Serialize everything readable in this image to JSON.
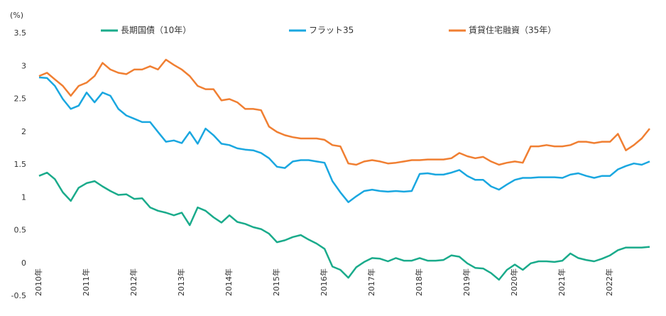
{
  "chart_data": {
    "type": "line",
    "y_label": "(%)",
    "categories": [
      "2010年",
      null,
      null,
      null,
      null,
      null,
      "2011年",
      null,
      null,
      null,
      null,
      null,
      "2012年",
      null,
      null,
      null,
      null,
      null,
      "2013年",
      null,
      null,
      null,
      null,
      null,
      "2014年",
      null,
      null,
      null,
      null,
      null,
      "2015年",
      null,
      null,
      null,
      null,
      null,
      "2016年",
      null,
      null,
      null,
      null,
      null,
      "2017年",
      null,
      null,
      null,
      null,
      null,
      "2018年",
      null,
      null,
      null,
      null,
      null,
      "2019年",
      null,
      null,
      null,
      null,
      null,
      "2020年",
      null,
      null,
      null,
      null,
      null,
      "2021年",
      null,
      null,
      null,
      null,
      null,
      "2022年",
      null,
      null,
      null,
      null,
      null
    ],
    "series": [
      {
        "name": "長期国債（10年）",
        "color": "#1aab8b",
        "values": [
          1.33,
          1.38,
          1.28,
          1.08,
          0.95,
          1.15,
          1.22,
          1.25,
          1.17,
          1.1,
          1.04,
          1.05,
          0.98,
          0.99,
          0.85,
          0.8,
          0.77,
          0.73,
          0.77,
          0.58,
          0.85,
          0.8,
          0.7,
          0.62,
          0.73,
          0.63,
          0.6,
          0.55,
          0.52,
          0.45,
          0.32,
          0.35,
          0.4,
          0.43,
          0.36,
          0.3,
          0.22,
          -0.05,
          -0.1,
          -0.22,
          -0.06,
          0.02,
          0.08,
          0.07,
          0.03,
          0.08,
          0.04,
          0.04,
          0.08,
          0.04,
          0.04,
          0.05,
          0.12,
          0.1,
          0.0,
          -0.07,
          -0.08,
          -0.15,
          -0.25,
          -0.1,
          -0.02,
          -0.1,
          0.0,
          0.03,
          0.03,
          0.02,
          0.04,
          0.15,
          0.08,
          0.05,
          0.03,
          0.07,
          0.12,
          0.2,
          0.24,
          0.24,
          0.24,
          0.25
        ]
      },
      {
        "name": "フラット35",
        "color": "#1aa7e0",
        "values": [
          2.83,
          2.82,
          2.7,
          2.5,
          2.35,
          2.4,
          2.6,
          2.45,
          2.6,
          2.55,
          2.35,
          2.25,
          2.2,
          2.15,
          2.15,
          2.0,
          1.85,
          1.87,
          1.83,
          2.0,
          1.82,
          2.05,
          1.95,
          1.82,
          1.8,
          1.75,
          1.73,
          1.72,
          1.68,
          1.6,
          1.47,
          1.45,
          1.55,
          1.57,
          1.57,
          1.55,
          1.53,
          1.25,
          1.08,
          0.93,
          1.02,
          1.1,
          1.12,
          1.1,
          1.09,
          1.1,
          1.09,
          1.1,
          1.36,
          1.37,
          1.35,
          1.35,
          1.38,
          1.42,
          1.33,
          1.27,
          1.27,
          1.17,
          1.12,
          1.2,
          1.27,
          1.3,
          1.3,
          1.31,
          1.31,
          1.31,
          1.3,
          1.35,
          1.37,
          1.33,
          1.3,
          1.33,
          1.33,
          1.43,
          1.48,
          1.52,
          1.5,
          1.55
        ]
      },
      {
        "name": "賃貸住宅融資（35年）",
        "color": "#f07f32",
        "values": [
          2.85,
          2.9,
          2.8,
          2.7,
          2.55,
          2.7,
          2.75,
          2.85,
          3.05,
          2.95,
          2.9,
          2.88,
          2.95,
          2.95,
          3.0,
          2.95,
          3.1,
          3.02,
          2.95,
          2.85,
          2.7,
          2.65,
          2.65,
          2.48,
          2.5,
          2.45,
          2.35,
          2.35,
          2.33,
          2.08,
          2.0,
          1.95,
          1.92,
          1.9,
          1.9,
          1.9,
          1.88,
          1.8,
          1.78,
          1.52,
          1.5,
          1.55,
          1.57,
          1.55,
          1.52,
          1.53,
          1.55,
          1.57,
          1.57,
          1.58,
          1.58,
          1.58,
          1.6,
          1.68,
          1.63,
          1.6,
          1.62,
          1.55,
          1.5,
          1.53,
          1.55,
          1.53,
          1.78,
          1.78,
          1.8,
          1.78,
          1.78,
          1.8,
          1.85,
          1.85,
          1.83,
          1.85,
          1.85,
          1.97,
          1.72,
          1.8,
          1.9,
          2.05
        ]
      }
    ],
    "ylim": [
      -0.5,
      3.5
    ],
    "yticks": [
      3.5,
      3,
      2.5,
      2,
      1.5,
      1,
      0.5,
      0,
      -0.5
    ],
    "grid": false,
    "legend": "top"
  }
}
